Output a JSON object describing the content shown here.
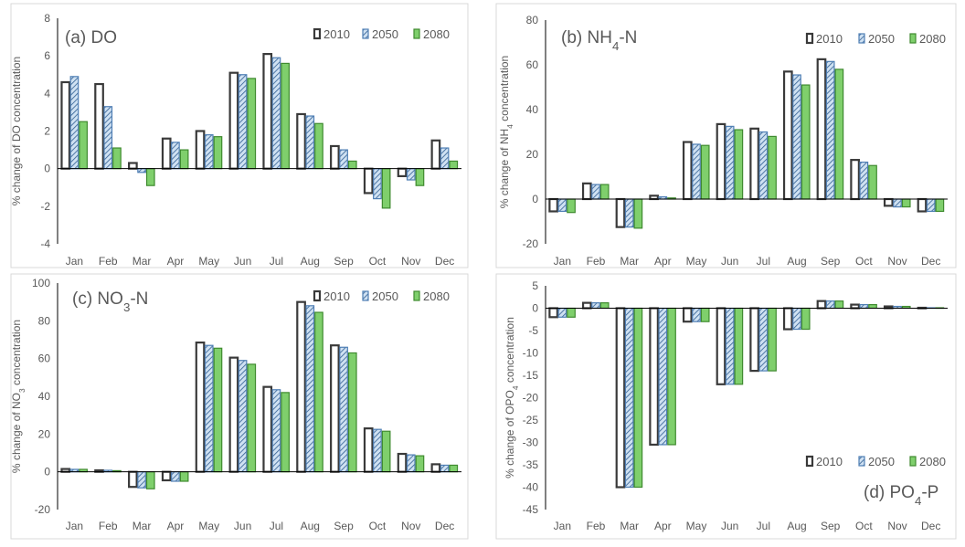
{
  "styles": {
    "series_colors": {
      "2010": {
        "fill": "#ffffff",
        "stroke": "#3a3a3a"
      },
      "2050": {
        "fill": "#cfe1f2",
        "stroke": "#4f7fb5",
        "hatch": "#2e5c91"
      },
      "2080": {
        "fill": "#7fcf6c",
        "stroke": "#3f8a2f"
      }
    },
    "axis_color": "#000000",
    "frame_color": "#d9d9d9",
    "text_color": "#595959"
  },
  "chart_data": [
    {
      "id": "a",
      "type": "bar",
      "title_pre": "(a) DO",
      "title_sub": "",
      "title_post": "",
      "ylabel_pre": "% change of DO concentration",
      "ylabel_sub": "",
      "ylabel_post": "",
      "legend_position": "top-right",
      "categories": [
        "Jan",
        "Feb",
        "Mar",
        "Apr",
        "May",
        "Jun",
        "Jul",
        "Aug",
        "Sep",
        "Oct",
        "Nov",
        "Dec"
      ],
      "ylim": [
        -4,
        8
      ],
      "ytick_values": [
        -4,
        -2,
        0,
        2,
        4,
        6,
        8
      ],
      "ytick_labels": [
        "-4",
        "-2",
        "0",
        "2",
        "4",
        "6",
        "8"
      ],
      "series": [
        {
          "name": "2010",
          "values": [
            4.6,
            4.5,
            0.3,
            1.6,
            2.0,
            5.1,
            6.1,
            2.9,
            1.2,
            -1.3,
            -0.4,
            1.5
          ]
        },
        {
          "name": "2050",
          "values": [
            4.9,
            3.3,
            -0.2,
            1.4,
            1.8,
            5.0,
            5.9,
            2.8,
            1.0,
            -1.6,
            -0.6,
            1.1
          ]
        },
        {
          "name": "2080",
          "values": [
            2.5,
            1.1,
            -0.9,
            1.0,
            1.7,
            4.8,
            5.6,
            2.4,
            0.4,
            -2.1,
            -0.9,
            0.4
          ]
        }
      ]
    },
    {
      "id": "b",
      "type": "bar",
      "title_pre": "(b) NH",
      "title_sub": "4",
      "title_post": "-N",
      "ylabel_pre": "% change of NH",
      "ylabel_sub": "4",
      "ylabel_post": " concentration",
      "legend_position": "top-right",
      "categories": [
        "Jan",
        "Feb",
        "Mar",
        "Apr",
        "May",
        "Jun",
        "Jul",
        "Aug",
        "Sep",
        "Oct",
        "Nov",
        "Dec"
      ],
      "ylim": [
        -20,
        80
      ],
      "ytick_values": [
        -20,
        0,
        20,
        40,
        60,
        80
      ],
      "ytick_labels": [
        "-20",
        "0",
        "20",
        "40",
        "60",
        "80"
      ],
      "series": [
        {
          "name": "2010",
          "values": [
            -5.5,
            7.0,
            -12.5,
            1.5,
            25.5,
            33.5,
            31.5,
            57.0,
            62.5,
            17.5,
            -3.0,
            -5.5
          ]
        },
        {
          "name": "2050",
          "values": [
            -5.5,
            6.5,
            -12.5,
            1.0,
            24.5,
            32.5,
            30.0,
            55.5,
            61.5,
            16.5,
            -3.5,
            -5.5
          ]
        },
        {
          "name": "2080",
          "values": [
            -6.0,
            6.5,
            -13.0,
            0.5,
            24.0,
            31.0,
            28.0,
            51.0,
            58.0,
            15.0,
            -3.5,
            -5.5
          ]
        }
      ]
    },
    {
      "id": "c",
      "type": "bar",
      "title_pre": "(c) NO",
      "title_sub": "3",
      "title_post": "-N",
      "ylabel_pre": "% change of NO",
      "ylabel_sub": "3",
      "ylabel_post": " concentration",
      "legend_position": "top-right",
      "categories": [
        "Jan",
        "Feb",
        "Mar",
        "Apr",
        "May",
        "Jun",
        "Jul",
        "Aug",
        "Sep",
        "Oct",
        "Nov",
        "Dec"
      ],
      "ylim": [
        -20,
        100
      ],
      "ytick_values": [
        -20,
        0,
        20,
        40,
        60,
        80,
        100
      ],
      "ytick_labels": [
        "-20",
        "0",
        "20",
        "40",
        "60",
        "80",
        "100"
      ],
      "series": [
        {
          "name": "2010",
          "values": [
            1.5,
            0.8,
            -8.0,
            -4.5,
            68.5,
            60.5,
            45.0,
            90.0,
            67.0,
            23.0,
            9.5,
            4.0
          ]
        },
        {
          "name": "2050",
          "values": [
            1.3,
            0.8,
            -8.5,
            -5.0,
            67.0,
            59.0,
            43.5,
            88.0,
            66.0,
            22.5,
            9.0,
            3.5
          ]
        },
        {
          "name": "2080",
          "values": [
            1.3,
            0.6,
            -9.0,
            -5.0,
            65.5,
            57.0,
            42.0,
            84.5,
            63.0,
            21.5,
            8.5,
            3.5
          ]
        }
      ]
    },
    {
      "id": "d",
      "type": "bar",
      "title_pre": "(d) PO",
      "title_sub": "4",
      "title_post": "-P",
      "ylabel_pre": "% change of OPO",
      "ylabel_sub": "4",
      "ylabel_post": " concentration",
      "legend_position": "bottom-right",
      "categories": [
        "Jan",
        "Feb",
        "Mar",
        "Apr",
        "May",
        "Jun",
        "Jul",
        "Aug",
        "Sep",
        "Oct",
        "Nov",
        "Dec"
      ],
      "ylim": [
        -45,
        5
      ],
      "ytick_values": [
        -45,
        -40,
        -35,
        -30,
        -25,
        -20,
        -15,
        -10,
        -5,
        0,
        5
      ],
      "ytick_labels": [
        "-45",
        "-40",
        "-35",
        "-30",
        "-25",
        "-20",
        "-15",
        "-10",
        "-5",
        "0",
        "5"
      ],
      "series": [
        {
          "name": "2010",
          "values": [
            -2.0,
            1.2,
            -40.0,
            -30.5,
            -3.0,
            -17.0,
            -14.0,
            -4.7,
            1.6,
            0.8,
            0.4,
            0.1
          ]
        },
        {
          "name": "2050",
          "values": [
            -2.0,
            1.2,
            -40.0,
            -30.5,
            -3.0,
            -17.0,
            -14.0,
            -4.7,
            1.6,
            0.8,
            0.4,
            0.1
          ]
        },
        {
          "name": "2080",
          "values": [
            -2.0,
            1.2,
            -40.0,
            -30.5,
            -3.0,
            -17.0,
            -14.0,
            -4.7,
            1.6,
            0.8,
            0.4,
            0.1
          ]
        }
      ]
    }
  ]
}
